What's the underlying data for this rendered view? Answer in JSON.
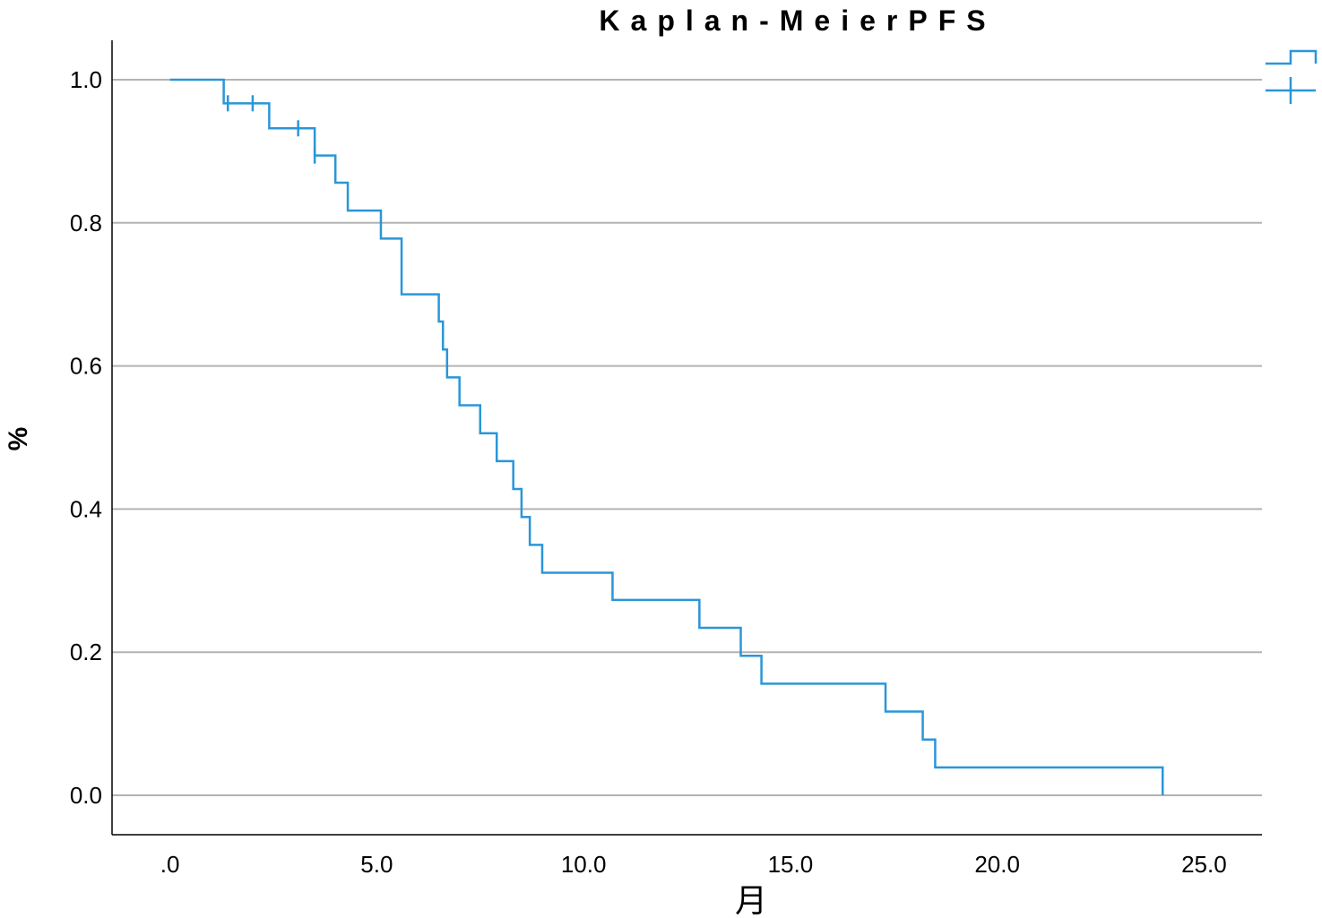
{
  "chart_data": {
    "type": "line",
    "title": "Kaplan-MeierPFS",
    "xlabel": "月",
    "ylabel": "%",
    "xlim": [
      -1.4,
      26.4
    ],
    "ylim": [
      -0.055,
      1.055
    ],
    "x_ticks": [
      0,
      5,
      10,
      15,
      20,
      25
    ],
    "x_tick_labels": [
      ".0",
      "5.0",
      "10.0",
      "15.0",
      "20.0",
      "25.0"
    ],
    "y_ticks": [
      0,
      0.2,
      0.4,
      0.6,
      0.8,
      1.0
    ],
    "y_tick_labels": [
      "0.0",
      "0.2",
      "0.4",
      "0.6",
      "0.8",
      "1.0"
    ],
    "grid": "horizontal",
    "legend": "top-right",
    "series": [
      {
        "color": "#2a96d8",
        "steps": [
          [
            0,
            1.0
          ],
          [
            1.3,
            0.967
          ],
          [
            2.4,
            0.932
          ],
          [
            3.5,
            0.894
          ],
          [
            4.0,
            0.856
          ],
          [
            4.3,
            0.817
          ],
          [
            5.1,
            0.778
          ],
          [
            5.6,
            0.7
          ],
          [
            6.5,
            0.662
          ],
          [
            6.6,
            0.623
          ],
          [
            6.7,
            0.584
          ],
          [
            7.0,
            0.545
          ],
          [
            7.5,
            0.506
          ],
          [
            7.9,
            0.467
          ],
          [
            8.3,
            0.428
          ],
          [
            8.5,
            0.389
          ],
          [
            8.7,
            0.35
          ],
          [
            9.0,
            0.311
          ],
          [
            10.7,
            0.273
          ],
          [
            12.8,
            0.234
          ],
          [
            13.8,
            0.195
          ],
          [
            14.3,
            0.156
          ],
          [
            17.3,
            0.117
          ],
          [
            18.2,
            0.078
          ],
          [
            18.5,
            0.039
          ],
          [
            24.0,
            0.0
          ]
        ],
        "censored": [
          [
            1.4,
            0.967
          ],
          [
            2.0,
            0.967
          ],
          [
            3.1,
            0.932
          ],
          [
            3.5,
            0.894
          ]
        ]
      }
    ]
  }
}
